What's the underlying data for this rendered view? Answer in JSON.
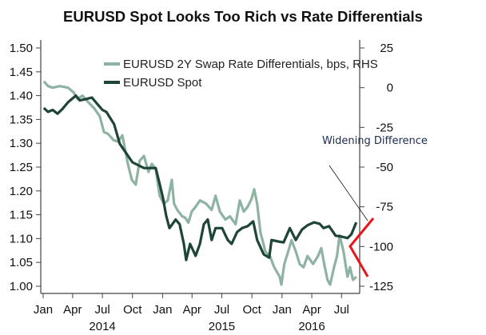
{
  "chart_data": {
    "type": "line",
    "title": "EURUSD Spot Looks Too Rich vs Rate Differentials",
    "xlabel": "",
    "ylabel": "",
    "x_range": [
      "2014-01-01",
      "2016-08-31"
    ],
    "x_ticks": [
      {
        "date": "2014-01-01",
        "label": "Jan"
      },
      {
        "date": "2014-04-01",
        "label": "Apr"
      },
      {
        "date": "2014-07-01",
        "label": "Jul"
      },
      {
        "date": "2014-10-01",
        "label": "Oct"
      },
      {
        "date": "2015-01-01",
        "label": "Jan"
      },
      {
        "date": "2015-04-01",
        "label": "Apr"
      },
      {
        "date": "2015-07-01",
        "label": "Jul"
      },
      {
        "date": "2015-10-01",
        "label": "Oct"
      },
      {
        "date": "2016-01-01",
        "label": "Jan"
      },
      {
        "date": "2016-04-01",
        "label": "Apr"
      },
      {
        "date": "2016-07-01",
        "label": "Jul"
      }
    ],
    "year_labels": [
      {
        "date": "2014-07-01",
        "label": "2014"
      },
      {
        "date": "2015-07-01",
        "label": "2015"
      },
      {
        "date": "2016-04-01",
        "label": "2016"
      }
    ],
    "y_left": {
      "range": [
        0.98,
        1.52
      ],
      "ticks": [
        "1.00",
        "1.05",
        "1.10",
        "1.15",
        "1.20",
        "1.25",
        "1.30",
        "1.35",
        "1.40",
        "1.45",
        "1.50"
      ]
    },
    "y_right": {
      "range": [
        -131,
        31
      ],
      "ticks": [
        "-125",
        "-100",
        "-75",
        "-50",
        "-25",
        "0",
        "25"
      ]
    },
    "grid": false,
    "legend_placement": "top-left",
    "series": [
      {
        "name": "EURUSD 2Y Swap Rate Differentials, bps, RHS",
        "axis": "right",
        "color": "#8fb3a2",
        "dates": [
          "2014-01-03",
          "2014-01-16",
          "2014-01-30",
          "2014-02-21",
          "2014-03-18",
          "2014-04-04",
          "2014-04-16",
          "2014-05-01",
          "2014-05-18",
          "2014-06-06",
          "2014-06-23",
          "2014-07-06",
          "2014-07-18",
          "2014-08-04",
          "2014-08-18",
          "2014-08-31",
          "2014-09-17",
          "2014-09-29",
          "2014-10-11",
          "2014-10-23",
          "2014-11-05",
          "2014-11-19",
          "2014-11-29",
          "2014-12-11",
          "2014-12-23",
          "2015-01-05",
          "2015-01-17",
          "2015-01-29",
          "2015-02-05",
          "2015-02-15",
          "2015-03-02",
          "2015-03-12",
          "2015-03-21",
          "2015-03-31",
          "2015-04-12",
          "2015-04-25",
          "2015-05-14",
          "2015-05-31",
          "2015-06-12",
          "2015-06-25",
          "2015-07-12",
          "2015-07-26",
          "2015-08-12",
          "2015-08-25",
          "2015-09-06",
          "2015-09-18",
          "2015-09-30",
          "2015-10-08",
          "2015-10-17",
          "2015-10-27",
          "2015-11-11",
          "2015-11-25",
          "2015-12-08",
          "2015-12-25",
          "2015-12-30",
          "2016-01-08",
          "2016-01-23",
          "2016-01-30",
          "2016-02-12",
          "2016-02-24",
          "2016-03-07",
          "2016-03-19",
          "2016-04-05",
          "2016-04-20",
          "2016-04-30",
          "2016-05-09",
          "2016-05-19",
          "2016-05-27",
          "2016-06-08",
          "2016-06-17",
          "2016-06-25",
          "2016-07-07",
          "2016-07-19",
          "2016-07-27",
          "2016-08-05",
          "2016-08-15"
        ],
        "values": [
          4,
          1,
          0,
          1,
          0,
          -3,
          -7,
          -5,
          -9,
          -13,
          -18,
          -28,
          -29,
          -33,
          -34,
          -30,
          -48,
          -58,
          -61,
          -46,
          -43,
          -53,
          -48,
          -51,
          -68,
          -73,
          -71,
          -58,
          -73,
          -77,
          -81,
          -82,
          -85,
          -78,
          -75,
          -71,
          -73,
          -77,
          -68,
          -78,
          -83,
          -81,
          -86,
          -71,
          -78,
          -75,
          -70,
          -64,
          -73,
          -91,
          -103,
          -106,
          -113,
          -119,
          -124,
          -111,
          -101,
          -96,
          -103,
          -111,
          -113,
          -106,
          -111,
          -106,
          -101,
          -111,
          -121,
          -124,
          -113,
          -106,
          -93,
          -103,
          -119,
          -113,
          -121,
          -119
        ]
      },
      {
        "name": "EURUSD Spot",
        "axis": "left",
        "color": "#1e4536",
        "dates": [
          "2014-01-03",
          "2014-01-16",
          "2014-01-30",
          "2014-02-14",
          "2014-03-01",
          "2014-03-18",
          "2014-04-11",
          "2014-04-23",
          "2014-05-13",
          "2014-05-30",
          "2014-06-11",
          "2014-07-01",
          "2014-07-13",
          "2014-08-06",
          "2014-08-23",
          "2014-10-01",
          "2014-11-05",
          "2014-12-11",
          "2014-12-23",
          "2015-01-02",
          "2015-01-12",
          "2015-01-22",
          "2015-02-10",
          "2015-02-22",
          "2015-03-07",
          "2015-03-14",
          "2015-03-26",
          "2015-04-12",
          "2015-04-25",
          "2015-05-07",
          "2015-05-19",
          "2015-05-31",
          "2015-06-12",
          "2015-07-02",
          "2015-07-19",
          "2015-07-31",
          "2015-08-17",
          "2015-09-01",
          "2015-09-18",
          "2015-10-05",
          "2015-10-17",
          "2015-11-06",
          "2015-11-23",
          "2015-11-30",
          "2015-12-20",
          "2016-01-06",
          "2016-01-25",
          "2016-02-12",
          "2016-03-02",
          "2016-03-19",
          "2016-04-08",
          "2016-04-25",
          "2016-05-07",
          "2016-05-24",
          "2016-06-13",
          "2016-07-02",
          "2016-07-19",
          "2016-07-31",
          "2016-08-15"
        ],
        "values": [
          1.374,
          1.366,
          1.37,
          1.362,
          1.372,
          1.386,
          1.4,
          1.39,
          1.393,
          1.396,
          1.386,
          1.37,
          1.366,
          1.34,
          1.299,
          1.26,
          1.248,
          1.248,
          1.215,
          1.186,
          1.148,
          1.122,
          1.14,
          1.13,
          1.089,
          1.055,
          1.089,
          1.064,
          1.089,
          1.13,
          1.14,
          1.097,
          1.122,
          1.122,
          1.097,
          1.089,
          1.114,
          1.122,
          1.126,
          1.136,
          1.097,
          1.067,
          1.06,
          1.097,
          1.094,
          1.092,
          1.122,
          1.097,
          1.119,
          1.128,
          1.134,
          1.131,
          1.122,
          1.126,
          1.106,
          1.104,
          1.101,
          1.109,
          1.134
        ]
      }
    ],
    "annotations": {
      "text": "Widening Difference",
      "pointer_color": "#000000",
      "bracket_color": "#e8151b"
    }
  }
}
